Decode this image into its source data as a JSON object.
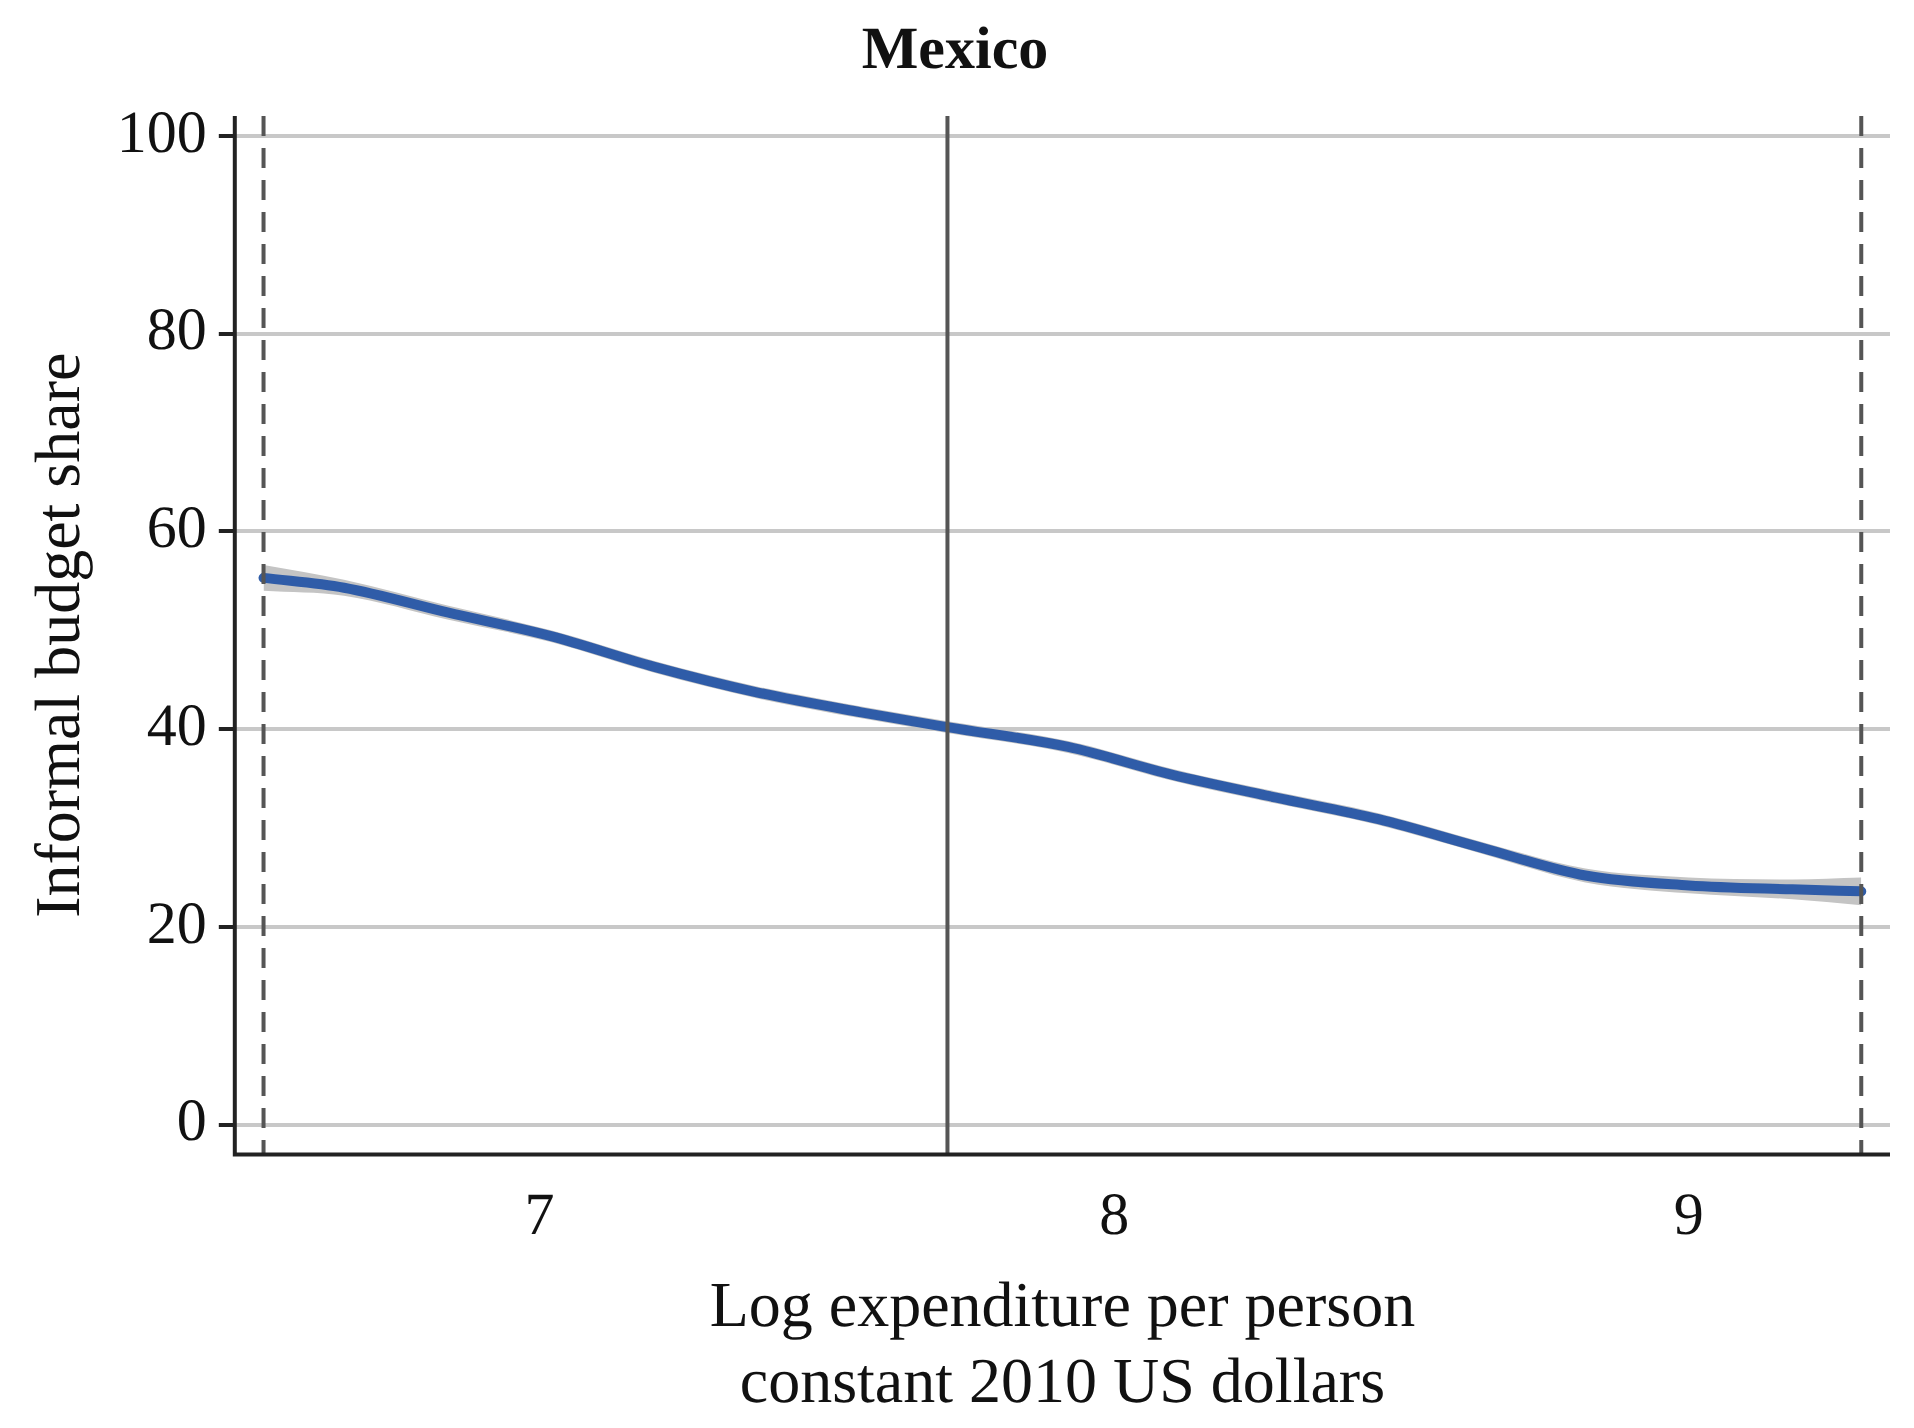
{
  "chart_data": {
    "type": "line",
    "title": "Mexico",
    "xlabel": "Log expenditure per person\nconstant 2010 US dollars",
    "ylabel": "Informal budget share",
    "x": [
      6.52,
      6.66,
      6.84,
      7.02,
      7.2,
      7.38,
      7.56,
      7.71,
      7.92,
      8.1,
      8.28,
      8.46,
      8.64,
      8.82,
      9.0,
      9.18,
      9.3
    ],
    "series": [
      {
        "color": "#2f5ca8",
        "values": [
          55.3,
          54.3,
          51.8,
          49.4,
          46.3,
          43.7,
          41.7,
          40.2,
          38.2,
          35.4,
          33.1,
          30.9,
          28.0,
          25.2,
          24.2,
          23.8,
          23.6
        ],
        "lower": [
          54,
          53.5,
          51.1,
          48.8,
          45.7,
          43.1,
          41.1,
          39.6,
          37.6,
          34.8,
          32.5,
          30.3,
          27.4,
          24.5,
          23.4,
          22.8,
          22.2
        ],
        "upper": [
          56.6,
          55.1,
          52.5,
          50.0,
          46.9,
          44.3,
          42.3,
          40.8,
          38.8,
          36.0,
          33.7,
          31.5,
          28.6,
          25.9,
          25.0,
          24.8,
          25.0
        ]
      }
    ],
    "xlim": [
      6.47,
      9.35
    ],
    "xticks": [
      7,
      8,
      9
    ],
    "ylim": [
      -3,
      102
    ],
    "yticks": [
      0,
      20,
      40,
      60,
      80,
      100
    ],
    "grid": "y",
    "legend": false,
    "marker": "none",
    "line_style": "solid",
    "ref_lines": [
      {
        "axis": "x",
        "value": 6.52,
        "color": "#555555",
        "line_style": "dashed"
      },
      {
        "axis": "x",
        "value": 7.71,
        "color": "#555555",
        "line_style": "solid"
      },
      {
        "axis": "x",
        "value": 9.3,
        "color": "#555555",
        "line_style": "dashed"
      }
    ]
  }
}
